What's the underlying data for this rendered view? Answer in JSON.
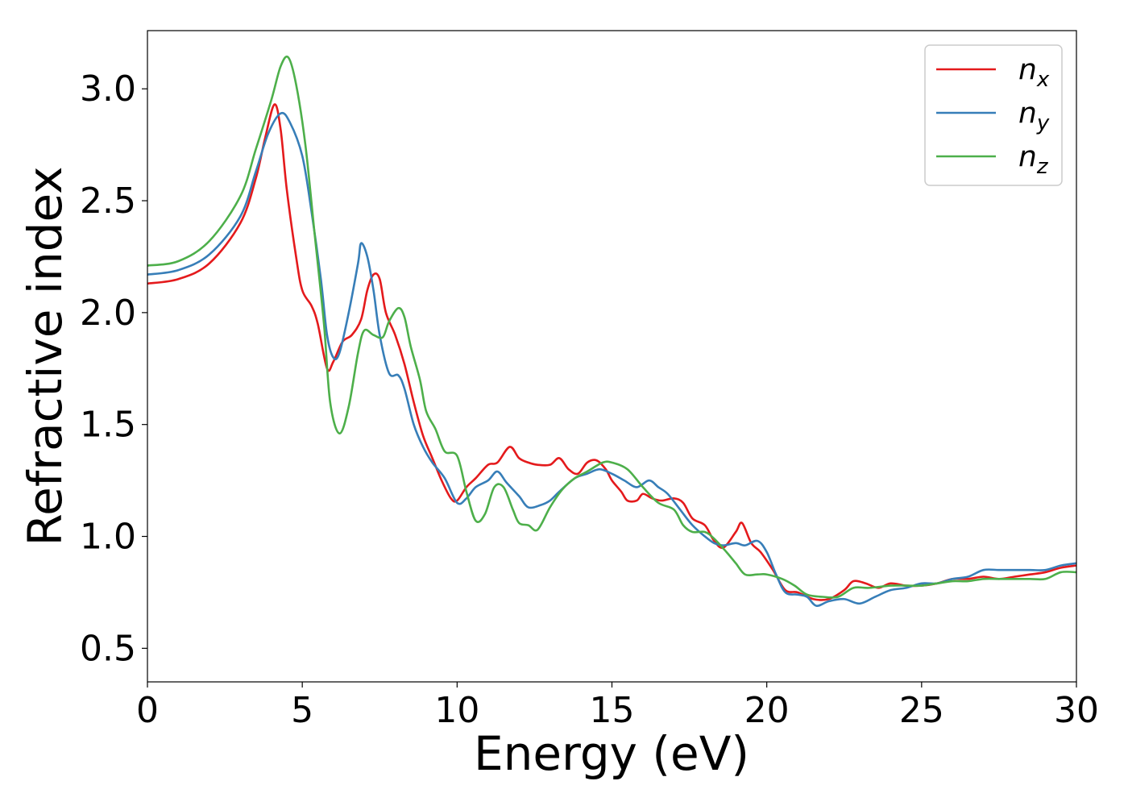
{
  "chart_data": {
    "type": "line",
    "title": "",
    "xlabel": "Energy (eV)",
    "ylabel": "Refractive index",
    "xlim": [
      0,
      30
    ],
    "ylim": [
      0.35,
      3.26
    ],
    "xticks": [
      0,
      5,
      10,
      15,
      20,
      25,
      30
    ],
    "xtick_labels": [
      "0",
      "5",
      "10",
      "15",
      "20",
      "25",
      "30"
    ],
    "yticks": [
      0.5,
      1.0,
      1.5,
      2.0,
      2.5,
      3.0
    ],
    "ytick_labels": [
      "0.5",
      "1.0",
      "1.5",
      "2.0",
      "2.5",
      "3.0"
    ],
    "grid": false,
    "legend_position": "top-right",
    "series": [
      {
        "name": "n_x",
        "label_main": "n",
        "label_sub": "x",
        "color": "#e41a1c",
        "points": [
          [
            0,
            2.13
          ],
          [
            1,
            2.15
          ],
          [
            2,
            2.22
          ],
          [
            3,
            2.4
          ],
          [
            3.5,
            2.6
          ],
          [
            3.8,
            2.78
          ],
          [
            4.1,
            2.93
          ],
          [
            4.3,
            2.82
          ],
          [
            4.5,
            2.55
          ],
          [
            4.8,
            2.25
          ],
          [
            5.0,
            2.1
          ],
          [
            5.3,
            2.03
          ],
          [
            5.5,
            1.95
          ],
          [
            5.8,
            1.75
          ],
          [
            6.0,
            1.78
          ],
          [
            6.3,
            1.87
          ],
          [
            6.6,
            1.9
          ],
          [
            6.9,
            1.97
          ],
          [
            7.1,
            2.1
          ],
          [
            7.3,
            2.17
          ],
          [
            7.5,
            2.15
          ],
          [
            7.7,
            2.0
          ],
          [
            8.0,
            1.9
          ],
          [
            8.3,
            1.77
          ],
          [
            8.6,
            1.6
          ],
          [
            8.9,
            1.45
          ],
          [
            9.2,
            1.35
          ],
          [
            9.5,
            1.25
          ],
          [
            9.8,
            1.17
          ],
          [
            10.0,
            1.16
          ],
          [
            10.3,
            1.22
          ],
          [
            10.6,
            1.26
          ],
          [
            11.0,
            1.32
          ],
          [
            11.3,
            1.33
          ],
          [
            11.7,
            1.4
          ],
          [
            12.0,
            1.35
          ],
          [
            12.3,
            1.33
          ],
          [
            12.6,
            1.32
          ],
          [
            13.0,
            1.32
          ],
          [
            13.3,
            1.35
          ],
          [
            13.6,
            1.3
          ],
          [
            13.9,
            1.28
          ],
          [
            14.2,
            1.33
          ],
          [
            14.5,
            1.34
          ],
          [
            14.8,
            1.3
          ],
          [
            15.0,
            1.25
          ],
          [
            15.3,
            1.2
          ],
          [
            15.5,
            1.16
          ],
          [
            15.8,
            1.16
          ],
          [
            16.0,
            1.19
          ],
          [
            16.3,
            1.17
          ],
          [
            16.6,
            1.16
          ],
          [
            17.0,
            1.17
          ],
          [
            17.3,
            1.15
          ],
          [
            17.6,
            1.08
          ],
          [
            18.0,
            1.05
          ],
          [
            18.3,
            0.98
          ],
          [
            18.6,
            0.95
          ],
          [
            19.0,
            1.02
          ],
          [
            19.2,
            1.06
          ],
          [
            19.5,
            0.97
          ],
          [
            19.8,
            0.93
          ],
          [
            20.2,
            0.85
          ],
          [
            20.6,
            0.76
          ],
          [
            21.0,
            0.75
          ],
          [
            21.5,
            0.72
          ],
          [
            22.0,
            0.72
          ],
          [
            22.5,
            0.76
          ],
          [
            22.8,
            0.8
          ],
          [
            23.2,
            0.79
          ],
          [
            23.6,
            0.77
          ],
          [
            24.0,
            0.79
          ],
          [
            24.5,
            0.78
          ],
          [
            25.0,
            0.78
          ],
          [
            25.5,
            0.79
          ],
          [
            26.0,
            0.81
          ],
          [
            26.5,
            0.81
          ],
          [
            27.0,
            0.82
          ],
          [
            27.5,
            0.81
          ],
          [
            28.0,
            0.82
          ],
          [
            28.5,
            0.83
          ],
          [
            29.0,
            0.84
          ],
          [
            29.5,
            0.86
          ],
          [
            30.0,
            0.87
          ]
        ]
      },
      {
        "name": "n_y",
        "label_main": "n",
        "label_sub": "y",
        "color": "#377eb8",
        "points": [
          [
            0,
            2.17
          ],
          [
            1,
            2.19
          ],
          [
            2,
            2.26
          ],
          [
            3,
            2.43
          ],
          [
            3.5,
            2.63
          ],
          [
            3.9,
            2.8
          ],
          [
            4.3,
            2.89
          ],
          [
            4.6,
            2.85
          ],
          [
            5.0,
            2.7
          ],
          [
            5.3,
            2.45
          ],
          [
            5.6,
            2.15
          ],
          [
            5.8,
            1.9
          ],
          [
            6.0,
            1.8
          ],
          [
            6.2,
            1.82
          ],
          [
            6.5,
            2.0
          ],
          [
            6.8,
            2.22
          ],
          [
            6.9,
            2.31
          ],
          [
            7.1,
            2.25
          ],
          [
            7.3,
            2.1
          ],
          [
            7.5,
            1.9
          ],
          [
            7.8,
            1.73
          ],
          [
            8.1,
            1.72
          ],
          [
            8.3,
            1.66
          ],
          [
            8.6,
            1.5
          ],
          [
            8.9,
            1.4
          ],
          [
            9.2,
            1.33
          ],
          [
            9.6,
            1.26
          ],
          [
            10.0,
            1.15
          ],
          [
            10.3,
            1.17
          ],
          [
            10.6,
            1.22
          ],
          [
            11.0,
            1.25
          ],
          [
            11.3,
            1.29
          ],
          [
            11.6,
            1.24
          ],
          [
            12.0,
            1.18
          ],
          [
            12.3,
            1.13
          ],
          [
            12.7,
            1.14
          ],
          [
            13.0,
            1.16
          ],
          [
            13.3,
            1.2
          ],
          [
            13.8,
            1.26
          ],
          [
            14.2,
            1.28
          ],
          [
            14.6,
            1.3
          ],
          [
            15.0,
            1.28
          ],
          [
            15.4,
            1.25
          ],
          [
            15.8,
            1.22
          ],
          [
            16.2,
            1.25
          ],
          [
            16.5,
            1.22
          ],
          [
            16.8,
            1.19
          ],
          [
            17.2,
            1.12
          ],
          [
            17.6,
            1.05
          ],
          [
            18.0,
            1.0
          ],
          [
            18.3,
            0.97
          ],
          [
            18.6,
            0.96
          ],
          [
            19.0,
            0.97
          ],
          [
            19.3,
            0.96
          ],
          [
            19.7,
            0.98
          ],
          [
            20.0,
            0.93
          ],
          [
            20.3,
            0.83
          ],
          [
            20.6,
            0.75
          ],
          [
            21.0,
            0.74
          ],
          [
            21.3,
            0.73
          ],
          [
            21.6,
            0.69
          ],
          [
            22.0,
            0.71
          ],
          [
            22.5,
            0.72
          ],
          [
            23.0,
            0.7
          ],
          [
            23.5,
            0.73
          ],
          [
            24.0,
            0.76
          ],
          [
            24.5,
            0.77
          ],
          [
            25.0,
            0.79
          ],
          [
            25.5,
            0.79
          ],
          [
            26.0,
            0.81
          ],
          [
            26.5,
            0.82
          ],
          [
            27.0,
            0.85
          ],
          [
            27.5,
            0.85
          ],
          [
            28.0,
            0.85
          ],
          [
            28.5,
            0.85
          ],
          [
            29.0,
            0.85
          ],
          [
            29.5,
            0.87
          ],
          [
            30.0,
            0.88
          ]
        ]
      },
      {
        "name": "n_z",
        "label_main": "n",
        "label_sub": "z",
        "color": "#4daf4a",
        "points": [
          [
            0,
            2.21
          ],
          [
            1,
            2.23
          ],
          [
            2,
            2.32
          ],
          [
            3,
            2.52
          ],
          [
            3.5,
            2.73
          ],
          [
            4.0,
            2.95
          ],
          [
            4.3,
            3.1
          ],
          [
            4.55,
            3.14
          ],
          [
            4.8,
            3.02
          ],
          [
            5.1,
            2.75
          ],
          [
            5.4,
            2.35
          ],
          [
            5.7,
            1.95
          ],
          [
            5.9,
            1.6
          ],
          [
            6.2,
            1.46
          ],
          [
            6.5,
            1.58
          ],
          [
            6.8,
            1.82
          ],
          [
            7.0,
            1.92
          ],
          [
            7.3,
            1.9
          ],
          [
            7.6,
            1.89
          ],
          [
            7.8,
            1.96
          ],
          [
            8.1,
            2.02
          ],
          [
            8.3,
            1.98
          ],
          [
            8.5,
            1.85
          ],
          [
            8.8,
            1.7
          ],
          [
            9.0,
            1.56
          ],
          [
            9.3,
            1.48
          ],
          [
            9.6,
            1.38
          ],
          [
            10.0,
            1.36
          ],
          [
            10.3,
            1.2
          ],
          [
            10.6,
            1.07
          ],
          [
            10.9,
            1.1
          ],
          [
            11.2,
            1.22
          ],
          [
            11.5,
            1.22
          ],
          [
            11.8,
            1.12
          ],
          [
            12.0,
            1.06
          ],
          [
            12.3,
            1.05
          ],
          [
            12.6,
            1.03
          ],
          [
            13.0,
            1.13
          ],
          [
            13.4,
            1.21
          ],
          [
            13.8,
            1.26
          ],
          [
            14.2,
            1.29
          ],
          [
            14.7,
            1.33
          ],
          [
            15.0,
            1.33
          ],
          [
            15.5,
            1.3
          ],
          [
            16.0,
            1.22
          ],
          [
            16.5,
            1.15
          ],
          [
            17.0,
            1.12
          ],
          [
            17.3,
            1.05
          ],
          [
            17.6,
            1.02
          ],
          [
            18.0,
            1.02
          ],
          [
            18.3,
            0.99
          ],
          [
            18.7,
            0.93
          ],
          [
            19.0,
            0.88
          ],
          [
            19.3,
            0.83
          ],
          [
            19.7,
            0.83
          ],
          [
            20.0,
            0.83
          ],
          [
            20.5,
            0.81
          ],
          [
            20.9,
            0.78
          ],
          [
            21.3,
            0.74
          ],
          [
            21.8,
            0.73
          ],
          [
            22.3,
            0.73
          ],
          [
            22.8,
            0.77
          ],
          [
            23.3,
            0.77
          ],
          [
            24.0,
            0.78
          ],
          [
            24.5,
            0.78
          ],
          [
            25.0,
            0.78
          ],
          [
            25.5,
            0.79
          ],
          [
            26.0,
            0.8
          ],
          [
            26.5,
            0.8
          ],
          [
            27.0,
            0.81
          ],
          [
            27.5,
            0.81
          ],
          [
            28.0,
            0.81
          ],
          [
            28.5,
            0.81
          ],
          [
            29.0,
            0.81
          ],
          [
            29.5,
            0.84
          ],
          [
            30.0,
            0.84
          ]
        ]
      }
    ]
  }
}
